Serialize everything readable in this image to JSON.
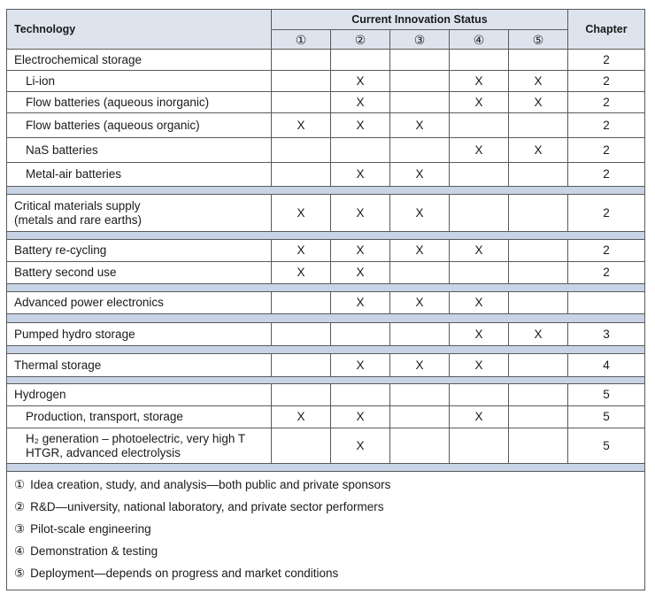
{
  "header": {
    "technology": "Technology",
    "status_title": "Current Innovation Status",
    "status_columns": [
      "①",
      "②",
      "③",
      "④",
      "⑤"
    ],
    "chapter": "Chapter"
  },
  "sections": [
    {
      "heading": {
        "label": "Electrochemical storage",
        "chapter": 2
      },
      "items": [
        {
          "label": "Li-ion",
          "cells": [
            null,
            "X",
            null,
            "X",
            "X"
          ],
          "chapter": 2
        },
        {
          "label": "Flow batteries (aqueous inorganic)",
          "cells": [
            null,
            "X",
            null,
            "X",
            "X"
          ],
          "chapter": 2
        },
        {
          "label": "Flow batteries (aqueous organic)",
          "cells": [
            "X",
            "X",
            "X",
            null,
            null
          ],
          "chapter": 2
        },
        {
          "label": "NaS batteries",
          "cells": [
            null,
            null,
            null,
            "X",
            "X"
          ],
          "chapter": 2
        },
        {
          "label": "Metal-air batteries",
          "cells": [
            null,
            "X",
            "X",
            null,
            null
          ],
          "chapter": 2
        }
      ]
    },
    {
      "rows": [
        {
          "label": [
            "Critical materials supply",
            "(metals and rare earths)"
          ],
          "cells": [
            "X",
            "X",
            "X",
            null,
            null
          ],
          "chapter": 2
        }
      ]
    },
    {
      "rows": [
        {
          "label": "Battery re-cycling",
          "cells": [
            "X",
            "X",
            "X",
            "X",
            null
          ],
          "chapter": 2
        },
        {
          "label": "Battery second use",
          "cells": [
            "X",
            "X",
            null,
            null,
            null
          ],
          "chapter": 2
        }
      ]
    },
    {
      "rows": [
        {
          "label": "Advanced power electronics",
          "cells": [
            null,
            "X",
            "X",
            "X",
            null
          ],
          "chapter": null
        }
      ]
    },
    {
      "rows": [
        {
          "label": "Pumped hydro storage",
          "cells": [
            null,
            null,
            null,
            "X",
            "X"
          ],
          "chapter": 3
        }
      ]
    },
    {
      "rows": [
        {
          "label": "Thermal storage",
          "cells": [
            null,
            "X",
            "X",
            "X",
            null
          ],
          "chapter": 4
        }
      ]
    },
    {
      "heading": {
        "label": "Hydrogen",
        "chapter": 5
      },
      "items": [
        {
          "label": "Production, transport, storage",
          "cells": [
            "X",
            "X",
            null,
            "X",
            null
          ],
          "chapter": 5
        },
        {
          "label": [
            "H₂ generation – photoelectric, very high T",
            "HTGR, advanced electrolysis"
          ],
          "cells": [
            null,
            "X",
            null,
            null,
            null
          ],
          "chapter": 5
        }
      ]
    }
  ],
  "legend": [
    {
      "symbol": "①",
      "text": "Idea creation, study, and analysis—both public and private sponsors"
    },
    {
      "symbol": "②",
      "text": "R&D—university, national laboratory, and private sector performers"
    },
    {
      "symbol": "③",
      "text": "Pilot-scale engineering"
    },
    {
      "symbol": "④",
      "text": "Demonstration & testing"
    },
    {
      "symbol": "⑤",
      "text": "Deployment—depends on progress and market conditions"
    }
  ]
}
